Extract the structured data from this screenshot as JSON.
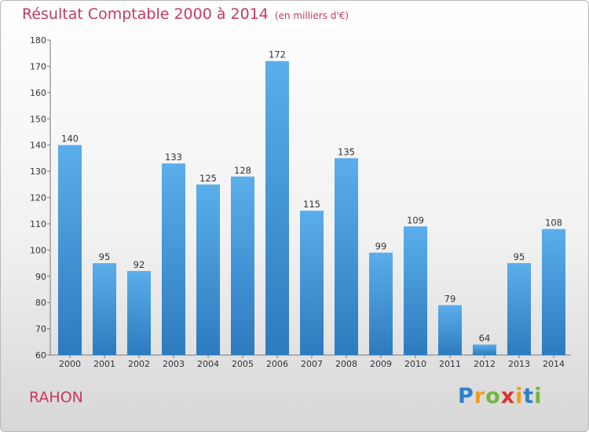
{
  "chart_data": {
    "type": "bar",
    "title": "Résultat Comptable 2000 à 2014",
    "subtitle": "(en milliers d'€)",
    "categories": [
      "2000",
      "2001",
      "2002",
      "2003",
      "2004",
      "2005",
      "2006",
      "2007",
      "2008",
      "2009",
      "2010",
      "2011",
      "2012",
      "2013",
      "2014"
    ],
    "values": [
      140,
      95,
      92,
      133,
      125,
      128,
      172,
      115,
      135,
      99,
      109,
      79,
      64,
      95,
      108
    ],
    "ylim": [
      60,
      180
    ],
    "yticks": [
      60,
      70,
      80,
      90,
      100,
      110,
      120,
      130,
      140,
      150,
      160,
      170,
      180
    ],
    "grid": false,
    "bar_color": "#4a9ddd"
  },
  "place_name": "RAHON",
  "logo": {
    "letters": [
      "P",
      "r",
      "o",
      "x",
      "i",
      "t",
      "i"
    ],
    "colors": [
      "#2d7fcf",
      "#f29c1f",
      "#74b63a",
      "#d8332c",
      "#f29c1f",
      "#2d7fcf",
      "#74b63a"
    ]
  }
}
